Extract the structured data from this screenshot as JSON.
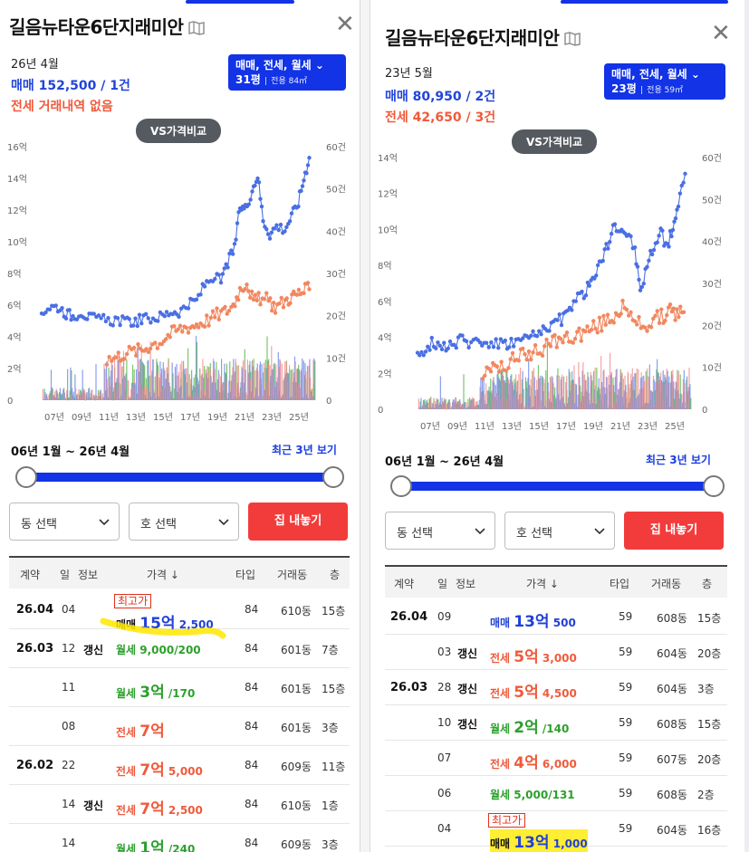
{
  "panels": [
    {
      "title": "길음뉴타운6단지래미안",
      "latest_ym": "26년 4월",
      "sale_summary": "매매 152,500 / 1건",
      "jeonse_summary": "전세 거래내역 없음",
      "filter_types": "매매, 전세, 월세",
      "size_pyeong": "31평",
      "size_area": "전용 84㎡",
      "vs_label": "VS가격비교",
      "chart_data": {
        "type": "line",
        "x": [
          "07년",
          "09년",
          "11년",
          "13년",
          "15년",
          "17년",
          "19년",
          "21년",
          "23년",
          "25년"
        ],
        "y_left_ticks": [
          "0",
          "2억",
          "4억",
          "6억",
          "8억",
          "10억",
          "12억",
          "14억",
          "16억"
        ],
        "y_right_ticks": [
          "0",
          "10건",
          "20건",
          "30건",
          "40건",
          "50건",
          "60건"
        ],
        "ylim_left": [
          0,
          16
        ],
        "ylim_right": [
          0,
          60
        ],
        "series": [
          {
            "name": "매매",
            "color": "#4a6fe3",
            "points": [
              [
                2006.0,
                5.6
              ],
              [
                2006.6,
                5.9
              ],
              [
                2007.2,
                5.9
              ],
              [
                2007.8,
                5.5
              ],
              [
                2008.3,
                5.3
              ],
              [
                2008.9,
                5.6
              ],
              [
                2009.5,
                5.2
              ],
              [
                2010.2,
                5.1
              ],
              [
                2010.9,
                5.0
              ],
              [
                2011.6,
                5.1
              ],
              [
                2012.3,
                4.9
              ],
              [
                2012.9,
                5.0
              ],
              [
                2013.5,
                5.1
              ],
              [
                2014.2,
                5.2
              ],
              [
                2014.9,
                5.3
              ],
              [
                2015.5,
                5.6
              ],
              [
                2016.1,
                5.6
              ],
              [
                2016.8,
                6.0
              ],
              [
                2017.4,
                6.3
              ],
              [
                2018.0,
                7.3
              ],
              [
                2018.6,
                7.8
              ],
              [
                2019.2,
                7.5
              ],
              [
                2019.7,
                8.7
              ],
              [
                2020.2,
                9.6
              ],
              [
                2020.6,
                12.2
              ],
              [
                2021.0,
                12.1
              ],
              [
                2021.5,
                13.3
              ],
              [
                2021.9,
                14.2
              ],
              [
                2022.3,
                11.4
              ],
              [
                2022.8,
                10.5
              ],
              [
                2023.3,
                11.0
              ],
              [
                2023.9,
                10.8
              ],
              [
                2024.4,
                11.6
              ],
              [
                2024.9,
                12.5
              ],
              [
                2025.3,
                14.0
              ],
              [
                2025.7,
                15.3
              ]
            ]
          },
          {
            "name": "전세",
            "color": "#f2875f",
            "points": [
              [
                2010.8,
                2.6
              ],
              [
                2011.5,
                2.7
              ],
              [
                2012.1,
                3.0
              ],
              [
                2012.8,
                3.1
              ],
              [
                2013.4,
                3.2
              ],
              [
                2014.0,
                3.5
              ],
              [
                2014.7,
                3.7
              ],
              [
                2015.3,
                4.1
              ],
              [
                2015.9,
                4.4
              ],
              [
                2016.5,
                4.6
              ],
              [
                2017.1,
                4.7
              ],
              [
                2017.7,
                4.9
              ],
              [
                2018.3,
                5.1
              ],
              [
                2018.9,
                5.4
              ],
              [
                2019.5,
                5.6
              ],
              [
                2020.1,
                6.0
              ],
              [
                2020.6,
                7.0
              ],
              [
                2021.1,
                7.5
              ],
              [
                2021.6,
                6.2
              ],
              [
                2022.1,
                6.4
              ],
              [
                2022.7,
                6.3
              ],
              [
                2023.2,
                5.9
              ],
              [
                2023.8,
                6.2
              ],
              [
                2024.3,
                6.5
              ],
              [
                2024.8,
                6.7
              ],
              [
                2025.3,
                6.9
              ],
              [
                2025.7,
                7.0
              ]
            ]
          }
        ]
      },
      "range_text": "06년 1월 ~ 26년 4월",
      "recent_label": "최근 3년 보기",
      "dong_select": "동 선택",
      "ho_select": "호 선택",
      "list_button": "집 내놓기",
      "headers": {
        "contract": "계약",
        "day": "일",
        "info": "정보",
        "price": "가격 ↓",
        "type": "타입",
        "dong": "거래동",
        "floor": "층"
      },
      "rows": [
        {
          "date": "26.04",
          "day": "04",
          "info": "",
          "badge": "최고가",
          "kind": "매매",
          "amount_big": "15억",
          "amount_rest": " 2,500",
          "type": "84",
          "dong": "610동",
          "floor": "15층",
          "color": "sale"
        },
        {
          "date": "26.03",
          "day": "12",
          "info": "갱신",
          "badge": "",
          "kind": "월세",
          "amount_big": "",
          "amount_rest": " 9,000/200",
          "type": "84",
          "dong": "601동",
          "floor": "7층",
          "color": "wol"
        },
        {
          "date": "",
          "day": "11",
          "info": "",
          "badge": "",
          "kind": "월세",
          "amount_big": "3억",
          "amount_rest": " /170",
          "type": "84",
          "dong": "601동",
          "floor": "15층",
          "color": "wol"
        },
        {
          "date": "",
          "day": "08",
          "info": "",
          "badge": "",
          "kind": "전세",
          "amount_big": "7억",
          "amount_rest": "",
          "type": "84",
          "dong": "601동",
          "floor": "3층",
          "color": "jeon"
        },
        {
          "date": "26.02",
          "day": "22",
          "info": "",
          "badge": "",
          "kind": "전세",
          "amount_big": "7억",
          "amount_rest": " 5,000",
          "type": "84",
          "dong": "609동",
          "floor": "11층",
          "color": "jeon"
        },
        {
          "date": "",
          "day": "14",
          "info": "갱신",
          "badge": "",
          "kind": "전세",
          "amount_big": "7억",
          "amount_rest": " 2,500",
          "type": "84",
          "dong": "610동",
          "floor": "1층",
          "color": "jeon"
        },
        {
          "date": "",
          "day": "14",
          "info": "",
          "badge": "",
          "kind": "월세",
          "amount_big": "1억",
          "amount_rest": " /240",
          "type": "84",
          "dong": "609동",
          "floor": "3층",
          "color": "wol"
        }
      ]
    },
    {
      "title": "길음뉴타운6단지래미안",
      "latest_ym": "23년 5월",
      "sale_summary": "매매 80,950 / 2건",
      "jeonse_summary": "전세 42,650 / 3건",
      "filter_types": "매매, 전세, 월세",
      "size_pyeong": "23평",
      "size_area": "전용 59㎡",
      "vs_label": "VS가격비교",
      "chart_data": {
        "type": "line",
        "x": [
          "07년",
          "09년",
          "11년",
          "13년",
          "15년",
          "17년",
          "19년",
          "21년",
          "23년",
          "25년"
        ],
        "y_left_ticks": [
          "0",
          "2억",
          "4억",
          "6억",
          "8억",
          "10억",
          "12억",
          "14억"
        ],
        "y_right_ticks": [
          "0",
          "10건",
          "20건",
          "30건",
          "40건",
          "50건",
          "60건"
        ],
        "ylim_left": [
          0,
          14
        ],
        "ylim_right": [
          0,
          60
        ],
        "series": [
          {
            "name": "매매",
            "color": "#4a6fe3",
            "points": [
              [
                2006.0,
                3.2
              ],
              [
                2006.6,
                3.4
              ],
              [
                2007.2,
                3.8
              ],
              [
                2007.8,
                3.5
              ],
              [
                2008.4,
                3.6
              ],
              [
                2009.0,
                3.8
              ],
              [
                2009.6,
                3.7
              ],
              [
                2010.3,
                3.8
              ],
              [
                2010.9,
                3.7
              ],
              [
                2011.6,
                3.7
              ],
              [
                2012.3,
                3.6
              ],
              [
                2012.9,
                3.7
              ],
              [
                2013.6,
                3.8
              ],
              [
                2014.2,
                4.0
              ],
              [
                2014.8,
                4.1
              ],
              [
                2015.4,
                4.5
              ],
              [
                2016.0,
                4.8
              ],
              [
                2016.6,
                5.0
              ],
              [
                2017.2,
                5.6
              ],
              [
                2017.8,
                6.2
              ],
              [
                2018.4,
                6.5
              ],
              [
                2018.9,
                7.3
              ],
              [
                2019.4,
                8.0
              ],
              [
                2019.9,
                9.0
              ],
              [
                2020.4,
                9.9
              ],
              [
                2020.9,
                10.1
              ],
              [
                2021.4,
                9.8
              ],
              [
                2022.0,
                8.9
              ],
              [
                2022.4,
                6.5
              ],
              [
                2022.9,
                8.0
              ],
              [
                2023.4,
                9.1
              ],
              [
                2023.9,
                9.8
              ],
              [
                2024.4,
                9.0
              ],
              [
                2024.8,
                10.2
              ],
              [
                2025.2,
                11.3
              ],
              [
                2025.7,
                13.1
              ]
            ]
          },
          {
            "name": "전세",
            "color": "#f2875f",
            "points": [
              [
                2010.8,
                2.0
              ],
              [
                2011.4,
                2.2
              ],
              [
                2012.0,
                2.4
              ],
              [
                2012.7,
                2.6
              ],
              [
                2013.3,
                2.8
              ],
              [
                2013.9,
                3.0
              ],
              [
                2014.5,
                3.2
              ],
              [
                2015.2,
                3.4
              ],
              [
                2015.8,
                3.6
              ],
              [
                2016.4,
                3.8
              ],
              [
                2017.0,
                4.0
              ],
              [
                2017.6,
                4.1
              ],
              [
                2018.2,
                4.3
              ],
              [
                2018.8,
                4.5
              ],
              [
                2019.4,
                4.7
              ],
              [
                2020.0,
                5.0
              ],
              [
                2020.6,
                5.3
              ],
              [
                2021.1,
                5.6
              ],
              [
                2021.7,
                5.0
              ],
              [
                2022.3,
                4.8
              ],
              [
                2022.9,
                4.7
              ],
              [
                2023.5,
                5.0
              ],
              [
                2024.1,
                5.2
              ],
              [
                2024.6,
                5.4
              ],
              [
                2025.1,
                5.3
              ],
              [
                2025.6,
                5.4
              ]
            ]
          }
        ]
      },
      "range_text": "06년 1월 ~ 26년 4월",
      "recent_label": "최근 3년 보기",
      "dong_select": "동 선택",
      "ho_select": "호 선택",
      "list_button": "집 내놓기",
      "headers": {
        "contract": "계약",
        "day": "일",
        "info": "정보",
        "price": "가격 ↓",
        "type": "타입",
        "dong": "거래동",
        "floor": "층"
      },
      "rows": [
        {
          "date": "26.04",
          "day": "09",
          "info": "",
          "badge": "",
          "kind": "매매",
          "amount_big": "13억",
          "amount_rest": " 500",
          "type": "59",
          "dong": "608동",
          "floor": "15층",
          "color": "sale"
        },
        {
          "date": "",
          "day": "03",
          "info": "갱신",
          "badge": "",
          "kind": "전세",
          "amount_big": "5억",
          "amount_rest": " 3,000",
          "type": "59",
          "dong": "604동",
          "floor": "20층",
          "color": "jeon"
        },
        {
          "date": "26.03",
          "day": "28",
          "info": "갱신",
          "badge": "",
          "kind": "전세",
          "amount_big": "5억",
          "amount_rest": " 4,500",
          "type": "59",
          "dong": "604동",
          "floor": "3층",
          "color": "jeon"
        },
        {
          "date": "",
          "day": "10",
          "info": "갱신",
          "badge": "",
          "kind": "월세",
          "amount_big": "2억",
          "amount_rest": " /140",
          "type": "59",
          "dong": "608동",
          "floor": "15층",
          "color": "wol"
        },
        {
          "date": "",
          "day": "07",
          "info": "",
          "badge": "",
          "kind": "전세",
          "amount_big": "4억",
          "amount_rest": " 6,000",
          "type": "59",
          "dong": "607동",
          "floor": "20층",
          "color": "jeon"
        },
        {
          "date": "",
          "day": "06",
          "info": "",
          "badge": "",
          "kind": "월세",
          "amount_big": "",
          "amount_rest": " 5,000/131",
          "type": "59",
          "dong": "608동",
          "floor": "2층",
          "color": "wol"
        },
        {
          "date": "",
          "day": "04",
          "info": "",
          "badge": "최고가",
          "kind": "매매",
          "amount_big": "13억",
          "amount_rest": " 1,000",
          "type": "59",
          "dong": "604동",
          "floor": "16층",
          "color": "sale"
        }
      ]
    }
  ]
}
